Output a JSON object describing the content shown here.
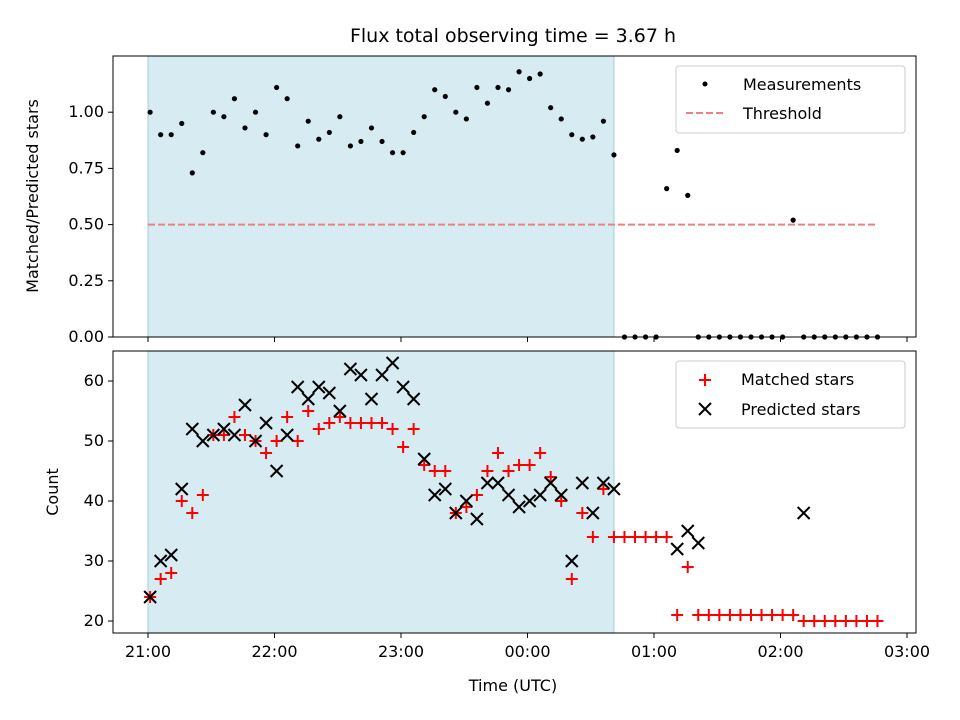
{
  "chart_data": [
    {
      "type": "scatter",
      "title": "Flux total observing time = 3.67 h",
      "xlabel": "",
      "ylabel": "Matched/Predicted stars",
      "ylim": [
        0,
        1.25
      ],
      "yticks": [
        "0.00",
        "0.25",
        "0.50",
        "0.75",
        "1.00"
      ],
      "shaded_span": {
        "start": "21:00",
        "end": "00:41"
      },
      "legend_position": "upper right",
      "series": [
        {
          "name": "Measurements",
          "marker": "dot",
          "color": "#000000",
          "x": [
            "21:01",
            "21:06",
            "21:11",
            "21:16",
            "21:21",
            "21:26",
            "21:31",
            "21:36",
            "21:41",
            "21:46",
            "21:51",
            "21:56",
            "22:01",
            "22:06",
            "22:11",
            "22:16",
            "22:21",
            "22:26",
            "22:31",
            "22:36",
            "22:41",
            "22:46",
            "22:51",
            "22:56",
            "23:01",
            "23:06",
            "23:11",
            "23:16",
            "23:21",
            "23:26",
            "23:31",
            "23:36",
            "23:41",
            "23:46",
            "23:51",
            "23:56",
            "00:01",
            "00:06",
            "00:11",
            "00:16",
            "00:21",
            "00:26",
            "00:31",
            "00:36",
            "00:41",
            "00:46",
            "00:51",
            "00:56",
            "01:01",
            "01:06",
            "01:11",
            "01:16",
            "01:21",
            "01:26",
            "01:31",
            "01:36",
            "01:41",
            "01:46",
            "01:51",
            "01:56",
            "02:01",
            "02:06",
            "02:11",
            "02:16",
            "02:21",
            "02:26",
            "02:31",
            "02:36",
            "02:41",
            "02:46"
          ],
          "y": [
            1.0,
            0.9,
            0.9,
            0.95,
            0.73,
            0.82,
            1.0,
            0.98,
            1.06,
            0.93,
            1.0,
            0.9,
            1.11,
            1.06,
            0.85,
            0.96,
            0.88,
            0.91,
            0.98,
            0.85,
            0.87,
            0.93,
            0.87,
            0.82,
            0.82,
            0.91,
            0.98,
            1.1,
            1.07,
            1.0,
            0.97,
            1.11,
            1.04,
            1.11,
            1.1,
            1.18,
            1.15,
            1.17,
            1.02,
            0.97,
            0.9,
            0.88,
            0.89,
            0.96,
            0.81,
            0,
            0,
            0,
            0,
            0.66,
            0.83,
            0.63,
            0,
            0,
            0,
            0,
            0,
            0,
            0,
            0,
            0,
            0.52,
            0,
            0,
            0,
            0,
            0,
            0,
            0,
            0
          ]
        },
        {
          "name": "Threshold",
          "marker": "dashed-line",
          "color": "#f08080",
          "x": [
            "21:00",
            "02:46"
          ],
          "y": [
            0.5,
            0.5
          ]
        }
      ]
    },
    {
      "type": "scatter",
      "title": "",
      "xlabel": "Time (UTC)",
      "ylabel": "Count",
      "ylim": [
        18,
        65
      ],
      "yticks": [
        "20",
        "30",
        "40",
        "50",
        "60"
      ],
      "xticks": [
        "21:00",
        "22:00",
        "23:00",
        "00:00",
        "01:00",
        "02:00",
        "03:00"
      ],
      "shaded_span": {
        "start": "21:00",
        "end": "00:41"
      },
      "legend_position": "upper right",
      "series": [
        {
          "name": "Matched stars",
          "marker": "plus",
          "color": "#ff0000",
          "x": [
            "21:01",
            "21:06",
            "21:11",
            "21:16",
            "21:21",
            "21:26",
            "21:31",
            "21:36",
            "21:41",
            "21:46",
            "21:51",
            "21:56",
            "22:01",
            "22:06",
            "22:11",
            "22:16",
            "22:21",
            "22:26",
            "22:31",
            "22:36",
            "22:41",
            "22:46",
            "22:51",
            "22:56",
            "23:01",
            "23:06",
            "23:11",
            "23:16",
            "23:21",
            "23:26",
            "23:31",
            "23:36",
            "23:41",
            "23:46",
            "23:51",
            "23:56",
            "00:01",
            "00:06",
            "00:11",
            "00:16",
            "00:21",
            "00:26",
            "00:31",
            "00:36",
            "00:41",
            "00:46",
            "00:51",
            "00:56",
            "01:01",
            "01:06",
            "01:11",
            "01:16",
            "01:21",
            "01:26",
            "01:31",
            "01:36",
            "01:41",
            "01:46",
            "01:51",
            "01:56",
            "02:01",
            "02:06",
            "02:11",
            "02:16",
            "02:21",
            "02:26",
            "02:31",
            "02:36",
            "02:41",
            "02:46"
          ],
          "y": [
            24,
            27,
            28,
            40,
            38,
            41,
            51,
            51,
            54,
            51,
            50,
            48,
            50,
            54,
            50,
            55,
            52,
            53,
            54,
            53,
            53,
            53,
            53,
            52,
            49,
            52,
            46,
            45,
            45,
            38,
            39,
            41,
            45,
            48,
            45,
            46,
            46,
            48,
            44,
            40,
            27,
            38,
            34,
            42,
            34,
            34,
            34,
            34,
            34,
            34,
            21,
            29,
            21,
            21,
            21,
            21,
            21,
            21,
            21,
            21,
            21,
            21,
            20,
            20,
            20,
            20,
            20,
            20,
            20,
            20
          ]
        },
        {
          "name": "Predicted stars",
          "marker": "x",
          "color": "#000000",
          "x": [
            "21:01",
            "21:06",
            "21:11",
            "21:16",
            "21:21",
            "21:26",
            "21:31",
            "21:36",
            "21:41",
            "21:46",
            "21:51",
            "21:56",
            "22:01",
            "22:06",
            "22:11",
            "22:16",
            "22:21",
            "22:26",
            "22:31",
            "22:36",
            "22:41",
            "22:46",
            "22:51",
            "22:56",
            "23:01",
            "23:06",
            "23:11",
            "23:16",
            "23:21",
            "23:26",
            "23:31",
            "23:36",
            "23:41",
            "23:46",
            "23:51",
            "23:56",
            "00:01",
            "00:06",
            "00:11",
            "00:16",
            "00:21",
            "00:26",
            "00:31",
            "00:36",
            "00:41",
            "01:11",
            "01:16",
            "01:21",
            "02:11"
          ],
          "y": [
            24,
            30,
            31,
            42,
            52,
            50,
            51,
            52,
            51,
            56,
            50,
            53,
            45,
            51,
            59,
            57,
            59,
            58,
            55,
            62,
            61,
            57,
            61,
            63,
            59,
            57,
            47,
            41,
            42,
            38,
            40,
            37,
            43,
            43,
            41,
            39,
            40,
            41,
            43,
            41,
            30,
            43,
            38,
            43,
            42,
            32,
            35,
            33,
            38
          ]
        }
      ]
    }
  ]
}
